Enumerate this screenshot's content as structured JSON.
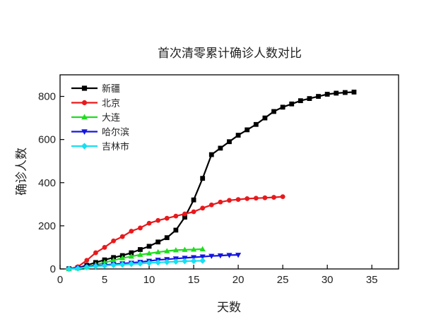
{
  "chart_data": {
    "type": "line",
    "title": "首次清零累计确诊人数对比",
    "xlabel": "天数",
    "ylabel": "确诊人数",
    "xlim": [
      0,
      38
    ],
    "ylim": [
      0,
      900
    ],
    "xticks": [
      0,
      5,
      10,
      15,
      20,
      25,
      30,
      35
    ],
    "yticks": [
      0,
      200,
      400,
      600,
      800
    ],
    "legend_position": "top-left",
    "series": [
      {
        "name": "新疆",
        "color": "#000000",
        "marker": "square",
        "x": [
          1,
          2,
          3,
          4,
          5,
          6,
          7,
          8,
          9,
          10,
          11,
          12,
          13,
          14,
          15,
          16,
          17,
          18,
          19,
          20,
          21,
          22,
          23,
          24,
          25,
          26,
          27,
          28,
          29,
          30,
          31,
          32,
          33
        ],
        "y": [
          1,
          5,
          17,
          30,
          42,
          53,
          62,
          75,
          90,
          105,
          125,
          145,
          180,
          240,
          320,
          420,
          530,
          560,
          590,
          620,
          645,
          670,
          700,
          730,
          750,
          765,
          780,
          790,
          800,
          810,
          815,
          818,
          820
        ]
      },
      {
        "name": "北京",
        "color": "#e8191c",
        "marker": "circle",
        "x": [
          1,
          2,
          3,
          4,
          5,
          6,
          7,
          8,
          9,
          10,
          11,
          12,
          13,
          14,
          15,
          16,
          17,
          18,
          19,
          20,
          21,
          22,
          23,
          24,
          25
        ],
        "y": [
          0,
          10,
          40,
          75,
          100,
          130,
          150,
          175,
          190,
          212,
          225,
          235,
          245,
          255,
          265,
          282,
          297,
          310,
          318,
          322,
          326,
          328,
          330,
          332,
          335
        ]
      },
      {
        "name": "大连",
        "color": "#1fdd1f",
        "marker": "triangle-up",
        "x": [
          1,
          2,
          3,
          4,
          5,
          6,
          7,
          8,
          9,
          10,
          11,
          12,
          13,
          14,
          15,
          16
        ],
        "y": [
          0,
          3,
          8,
          20,
          30,
          40,
          50,
          58,
          66,
          72,
          78,
          83,
          87,
          89,
          90,
          92
        ]
      },
      {
        "name": "哈尔滨",
        "color": "#1515e0",
        "marker": "triangle-down",
        "x": [
          1,
          2,
          3,
          4,
          5,
          6,
          7,
          8,
          9,
          10,
          11,
          12,
          13,
          14,
          15,
          16,
          17,
          18,
          19,
          20
        ],
        "y": [
          0,
          5,
          10,
          15,
          18,
          22,
          25,
          28,
          32,
          37,
          42,
          45,
          48,
          51,
          54,
          57,
          60,
          62,
          64,
          65
        ]
      },
      {
        "name": "吉林市",
        "color": "#16e0f0",
        "marker": "diamond",
        "x": [
          1,
          2,
          3,
          4,
          5,
          6,
          7,
          8,
          9,
          10,
          11,
          12,
          13,
          14,
          15,
          16
        ],
        "y": [
          0,
          2,
          8,
          12,
          15,
          18,
          20,
          23,
          25,
          28,
          30,
          32,
          34,
          36,
          37,
          38
        ]
      }
    ]
  }
}
